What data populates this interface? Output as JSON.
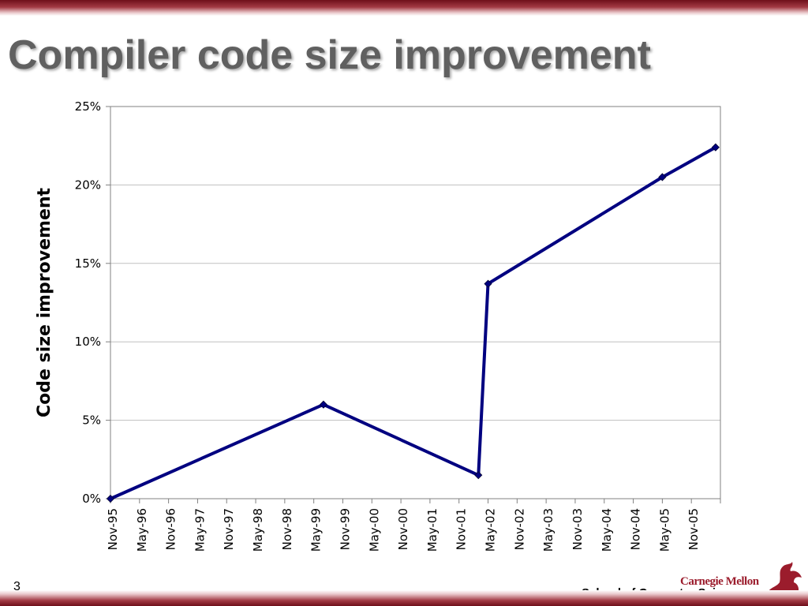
{
  "slide": {
    "title": "Compiler code size improvement",
    "page_number": "3",
    "footer_org": "Carnegie Mellon",
    "footer_school": "School of Computer Science"
  },
  "colors": {
    "brand": "#9b1c2c",
    "series": "#000080",
    "title": "#606060",
    "grid": "#c0c0c0"
  },
  "logo": {
    "icon": "griffin-logo"
  },
  "chart_data": {
    "type": "line",
    "title": "",
    "xlabel": "",
    "ylabel": "Code size improvement",
    "y_tick_labels": [
      "0%",
      "5%",
      "10%",
      "15%",
      "20%",
      "25%"
    ],
    "ylim": [
      0,
      25
    ],
    "y_unit": "%",
    "x_tick_labels": [
      "Nov-95",
      "May-96",
      "Nov-96",
      "May-97",
      "Nov-97",
      "May-98",
      "Nov-98",
      "May-99",
      "Nov-99",
      "May-00",
      "Nov-00",
      "May-01",
      "Nov-01",
      "May-02",
      "Nov-02",
      "May-03",
      "Nov-03",
      "May-04",
      "Nov-04",
      "May-05",
      "Nov-05"
    ],
    "xlim": [
      "1995-11",
      "2006-05"
    ],
    "grid": "horizontal",
    "legend": "none",
    "series": [
      {
        "points": [
          {
            "x": "1995-11",
            "y": 0.0
          },
          {
            "x": "1999-07",
            "y": 6.0
          },
          {
            "x": "2002-03",
            "y": 1.5
          },
          {
            "x": "2002-05",
            "y": 13.7
          },
          {
            "x": "2005-05",
            "y": 20.5
          },
          {
            "x": "2006-04",
            "y": 22.4
          }
        ]
      }
    ]
  }
}
